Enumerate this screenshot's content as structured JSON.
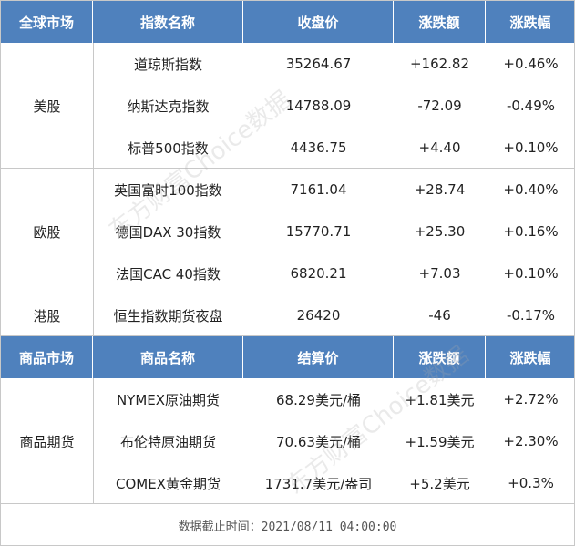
{
  "market_table": {
    "header": [
      "全球市场",
      "指数名称",
      "收盘价",
      "涨跌额",
      "涨跌幅"
    ],
    "groups": [
      {
        "market": "美股",
        "rows": [
          [
            "道琼斯指数",
            "35264.67",
            "+162.82",
            "+0.46%"
          ],
          [
            "纳斯达克指数",
            "14788.09",
            "-72.09",
            "-0.49%"
          ],
          [
            "标普500指数",
            "4436.75",
            "+4.40",
            "+0.10%"
          ]
        ]
      },
      {
        "market": "欧股",
        "rows": [
          [
            "英国富时100指数",
            "7161.04",
            "+28.74",
            "+0.40%"
          ],
          [
            "德国DAX 30指数",
            "15770.71",
            "+25.30",
            "+0.16%"
          ],
          [
            "法国CAC 40指数",
            "6820.21",
            "+7.03",
            "+0.10%"
          ]
        ]
      },
      {
        "market": "港股",
        "rows": [
          [
            "恒生指数期货夜盘",
            "26420",
            "-46",
            "-0.17%"
          ]
        ]
      }
    ]
  },
  "commodity_table": {
    "header": [
      "商品市场",
      "商品名称",
      "结算价",
      "涨跌额",
      "涨跌幅"
    ],
    "groups": [
      {
        "market": "商品期货",
        "rows": [
          [
            "NYMEX原油期货",
            "68.29美元/桶",
            "+1.81美元",
            "+2.72%"
          ],
          [
            "布伦特原油期货",
            "70.63美元/桶",
            "+1.59美元",
            "+2.30%"
          ],
          [
            "COMEX黄金期货",
            "1731.7美元/盎司",
            "+5.2美元",
            "+0.3%"
          ]
        ]
      }
    ]
  },
  "footer": "数据截止时间：2021/08/11 04:00:00",
  "watermark": "东方财富Choice数据"
}
